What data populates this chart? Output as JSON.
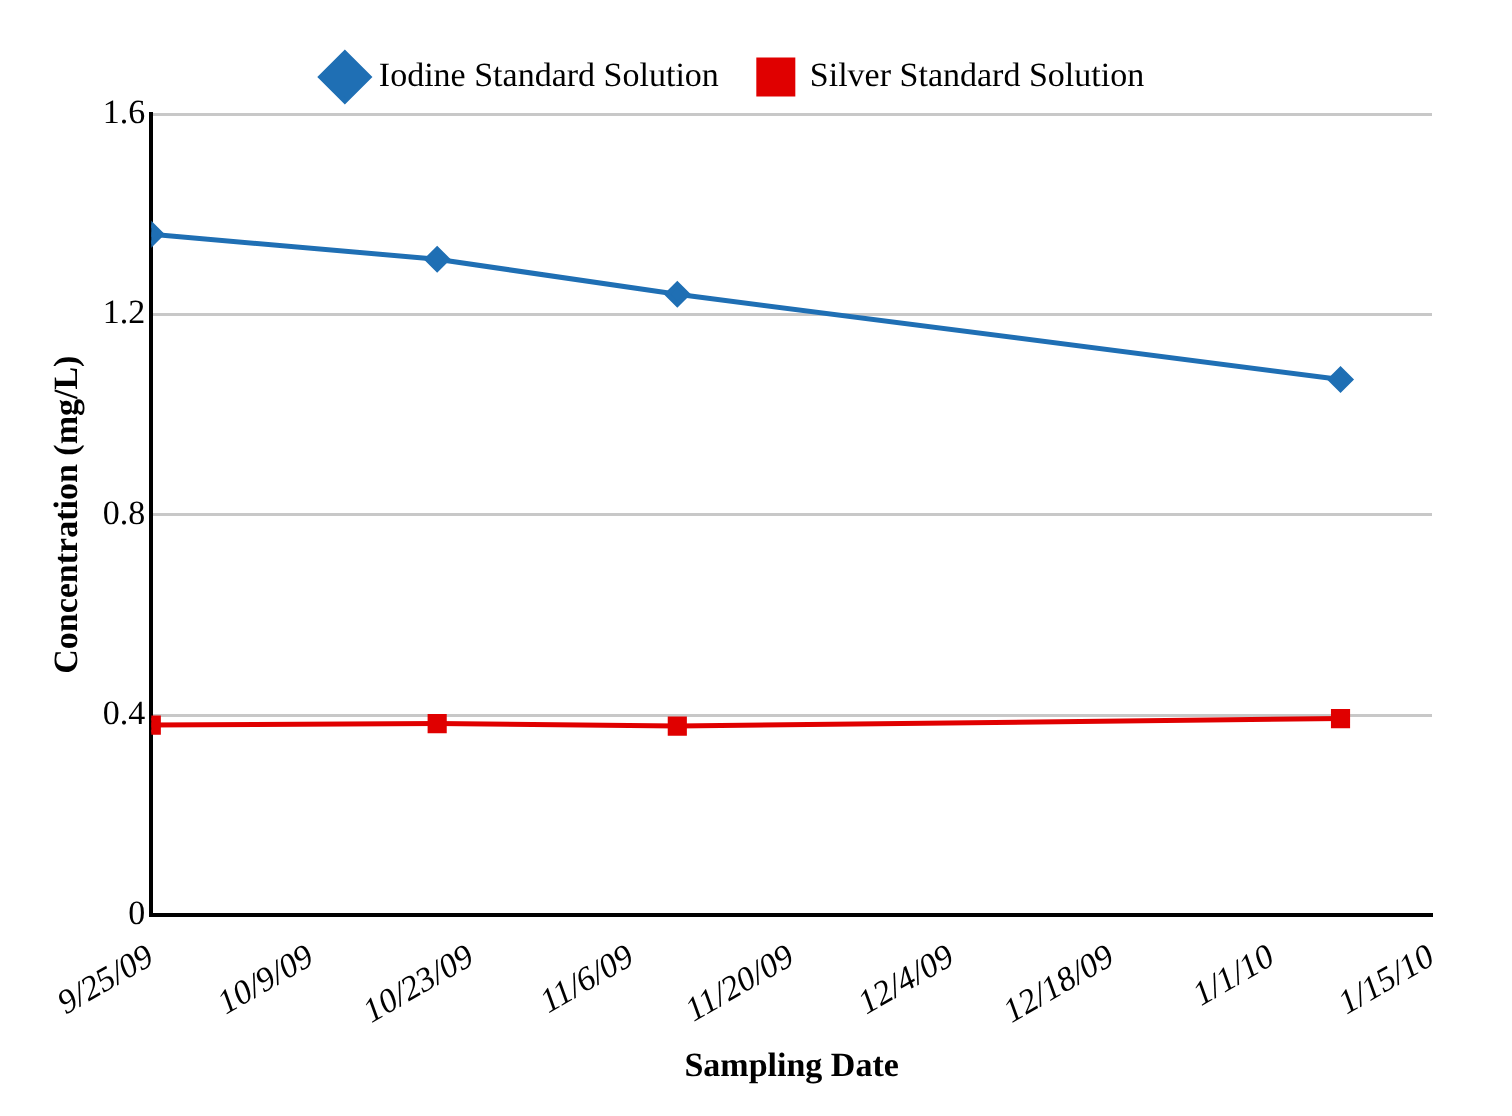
{
  "chart_data": {
    "type": "line",
    "xlabel": "Sampling Date",
    "ylabel": "Concentration (mg/L)",
    "x": [
      "2009-09-25",
      "2009-10-20",
      "2009-11-10",
      "2010-01-07"
    ],
    "series": [
      {
        "name": "Iodine Standard Solution",
        "color": "#1f6fb4",
        "marker": "diamond",
        "values": [
          1.36,
          1.31,
          1.24,
          1.07
        ]
      },
      {
        "name": "Silver Standard Solution",
        "color": "#e00000",
        "marker": "square",
        "values": [
          0.38,
          0.383,
          0.378,
          0.393
        ]
      }
    ],
    "xlim": [
      "2009-09-25",
      "2010-01-15"
    ],
    "xticks": [
      {
        "value": "2009-09-25",
        "label": "9/25/09"
      },
      {
        "value": "2009-10-09",
        "label": "10/9/09"
      },
      {
        "value": "2009-10-23",
        "label": "10/23/09"
      },
      {
        "value": "2009-11-06",
        "label": "11/6/09"
      },
      {
        "value": "2009-11-20",
        "label": "11/20/09"
      },
      {
        "value": "2009-12-04",
        "label": "12/4/09"
      },
      {
        "value": "2009-12-18",
        "label": "12/18/09"
      },
      {
        "value": "2010-01-01",
        "label": "1/1/10"
      },
      {
        "value": "2010-01-15",
        "label": "1/15/10"
      }
    ],
    "ylim": [
      0,
      1.6
    ],
    "yticks": [
      0,
      0.4,
      0.8,
      1.2,
      1.6
    ],
    "grid": "y",
    "legend": "top"
  }
}
